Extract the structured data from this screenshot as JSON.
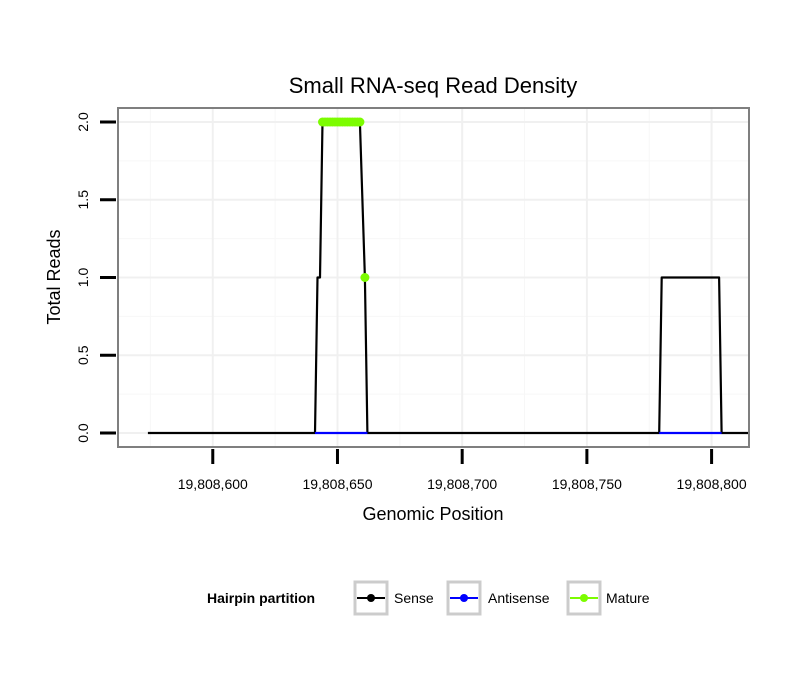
{
  "chart_data": {
    "type": "line",
    "title": "Small RNA-seq Read Density",
    "xlabel": "Genomic Position",
    "ylabel": "Total Reads",
    "xlim": [
      19808562,
      19808815
    ],
    "ylim": [
      -0.09,
      2.09
    ],
    "x_ticks": [
      {
        "value": 19808600,
        "label": "19,808,600"
      },
      {
        "value": 19808650,
        "label": "19,808,650"
      },
      {
        "value": 19808700,
        "label": "19,808,700"
      },
      {
        "value": 19808750,
        "label": "19,808,750"
      },
      {
        "value": 19808800,
        "label": "19,808,800"
      }
    ],
    "y_ticks": [
      {
        "value": 0.0,
        "label": "0.0"
      },
      {
        "value": 0.5,
        "label": "0.5"
      },
      {
        "value": 1.0,
        "label": "1.0"
      },
      {
        "value": 1.5,
        "label": "1.5"
      },
      {
        "value": 2.0,
        "label": "2.0"
      }
    ],
    "series": [
      {
        "name": "Sense",
        "color": "#000000",
        "points": [
          [
            19808574,
            0
          ],
          [
            19808641,
            0
          ],
          [
            19808642,
            1
          ],
          [
            19808643,
            1
          ],
          [
            19808644,
            2
          ],
          [
            19808659,
            2
          ],
          [
            19808661,
            1
          ],
          [
            19808662,
            0
          ],
          [
            19808779,
            0
          ],
          [
            19808780,
            1
          ],
          [
            19808803,
            1
          ],
          [
            19808804,
            0
          ],
          [
            19808815,
            0
          ]
        ]
      },
      {
        "name": "Antisense",
        "color": "#0000ff",
        "points": [
          [
            19808641,
            0
          ],
          [
            19808662,
            0
          ]
        ]
      },
      {
        "name": "Antisense",
        "color": "#0000ff",
        "points": [
          [
            19808779,
            0
          ],
          [
            19808804,
            0
          ]
        ]
      },
      {
        "name": "Mature",
        "color": "#7cfc00",
        "points": [
          [
            19808644,
            2
          ],
          [
            19808659,
            2
          ]
        ],
        "marker_points": [
          [
            19808644,
            2
          ],
          [
            19808645,
            2
          ],
          [
            19808646,
            2
          ],
          [
            19808647,
            2
          ],
          [
            19808648,
            2
          ],
          [
            19808649,
            2
          ],
          [
            19808650,
            2
          ],
          [
            19808651,
            2
          ],
          [
            19808652,
            2
          ],
          [
            19808653,
            2
          ],
          [
            19808654,
            2
          ],
          [
            19808655,
            2
          ],
          [
            19808656,
            2
          ],
          [
            19808657,
            2
          ],
          [
            19808658,
            2
          ],
          [
            19808659,
            2
          ],
          [
            19808661,
            1
          ]
        ]
      }
    ],
    "legend": {
      "title": "Hairpin partition",
      "position": "bottom",
      "entries": [
        {
          "label": "Sense",
          "color": "#000000"
        },
        {
          "label": "Antisense",
          "color": "#0000ff"
        },
        {
          "label": "Mature",
          "color": "#7cfc00"
        }
      ]
    },
    "grid": true,
    "colors": {
      "panel_border": "#7f7f7f",
      "grid_major": "#f0f0f0",
      "grid_minor": "#f7f7f7",
      "legend_key_border": "#cccccc"
    }
  }
}
